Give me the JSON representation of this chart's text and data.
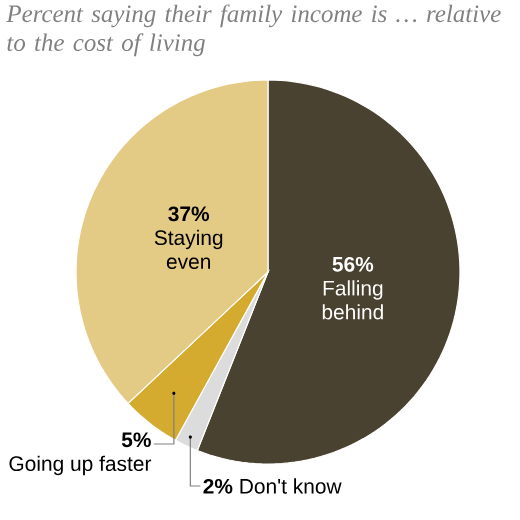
{
  "chart_data": {
    "type": "pie",
    "title": "Percent saying their family income is … relative to the cost of living",
    "categories": [
      "Falling behind",
      "Don't know",
      "Going up faster",
      "Staying even"
    ],
    "values": [
      56,
      2,
      5,
      37
    ],
    "value_labels": [
      "56%",
      "2%",
      "5%",
      "37%"
    ],
    "colors": [
      "#4a4230",
      "#dcdcdc",
      "#d4aa2f",
      "#e3cb85"
    ]
  }
}
